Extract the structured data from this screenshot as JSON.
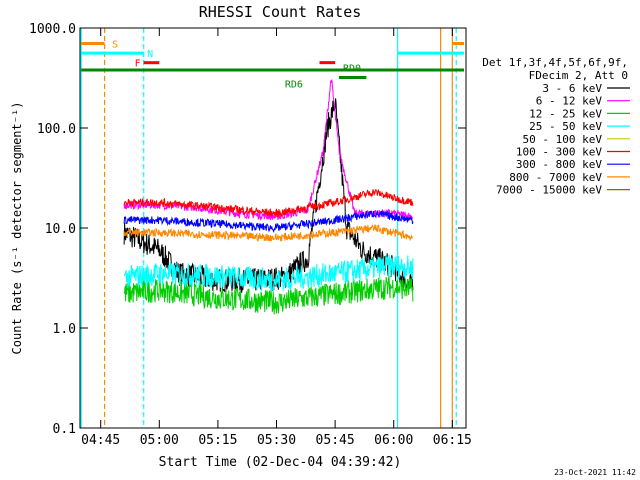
{
  "chart_data": {
    "type": "line",
    "title": "RHESSI Count Rates",
    "xlabel": "Start Time (02-Dec-04 04:39:42)",
    "ylabel": "Count Rate (s⁻¹ detector segment⁻¹)",
    "x_range": [
      "04:39:42",
      "06:18:30"
    ],
    "y_range": [
      0.1,
      1000
    ],
    "y_scale": "log",
    "x_ticks": [
      "04:45",
      "05:00",
      "05:15",
      "05:30",
      "05:45",
      "06:00",
      "06:15"
    ],
    "y_ticks": [
      "0.1",
      "1.0",
      "10.0",
      "100.0",
      "1000.0"
    ],
    "legend_header": [
      "Det 1f,3f,4f,5f,6f,9f,",
      "FDecim 2, Att 0"
    ],
    "legend_position": "right",
    "series": [
      {
        "name": "3 - 6 keV",
        "color": "#000000",
        "x": [
          "04:51",
          "05:00",
          "05:05",
          "05:15",
          "05:25",
          "05:32",
          "05:38",
          "05:43",
          "05:45",
          "05:48",
          "05:52",
          "06:00",
          "06:05"
        ],
        "values": [
          9,
          6,
          3.5,
          3,
          3,
          3.2,
          5,
          100,
          180,
          10,
          6,
          4,
          2.5
        ]
      },
      {
        "name": "6 - 12 keV",
        "color": "#ff00ff",
        "x": [
          "04:51",
          "05:00",
          "05:10",
          "05:20",
          "05:30",
          "05:38",
          "05:42",
          "05:44",
          "05:46",
          "05:50",
          "06:00",
          "06:05"
        ],
        "values": [
          17,
          17,
          16,
          14,
          13,
          15,
          60,
          320,
          60,
          14,
          14,
          13
        ]
      },
      {
        "name": "12 - 25 keV",
        "color": "#00cc00",
        "x": [
          "04:51",
          "05:00",
          "05:15",
          "05:30",
          "05:45",
          "06:00",
          "06:05"
        ],
        "values": [
          2.2,
          2.4,
          2,
          1.8,
          2.2,
          2.6,
          2.4
        ]
      },
      {
        "name": "25 - 50 keV",
        "color": "#00ffff",
        "x": [
          "04:51",
          "05:00",
          "05:15",
          "05:30",
          "05:45",
          "06:00",
          "06:05"
        ],
        "values": [
          3.2,
          3.5,
          3.3,
          3,
          3.5,
          4.2,
          4
        ]
      },
      {
        "name": "50 - 100 keV",
        "color": "#cccc00",
        "x": [
          "04:51",
          "06:05"
        ],
        "values": [
          0.1,
          0.1
        ]
      },
      {
        "name": "100 - 300 keV",
        "color": "#ff0000",
        "x": [
          "04:51",
          "05:00",
          "05:15",
          "05:30",
          "05:45",
          "05:55",
          "06:00",
          "06:05"
        ],
        "values": [
          18,
          18,
          16,
          14,
          18,
          23,
          20,
          18
        ]
      },
      {
        "name": "300 - 800 keV",
        "color": "#0000ff",
        "x": [
          "04:51",
          "05:00",
          "05:15",
          "05:30",
          "05:45",
          "05:55",
          "06:05"
        ],
        "values": [
          12,
          12,
          11,
          10,
          12,
          14,
          12
        ]
      },
      {
        "name": "800 - 7000 keV",
        "color": "#ff8800",
        "x": [
          "04:51",
          "05:00",
          "05:15",
          "05:30",
          "05:45",
          "05:55",
          "06:05"
        ],
        "values": [
          9,
          9,
          8.5,
          8,
          9,
          10,
          8
        ]
      },
      {
        "name": "7000 - 15000 keV",
        "color": "#996600",
        "x": [
          "04:51",
          "06:05"
        ],
        "values": [
          0.1,
          0.1
        ]
      }
    ],
    "vertical_lines": [
      {
        "time": "04:40",
        "color": "#00ffff",
        "style": "solid"
      },
      {
        "time": "04:46",
        "color": "#ff8800",
        "style": "dashed"
      },
      {
        "time": "04:56",
        "color": "#00ffff",
        "style": "dashed"
      },
      {
        "time": "06:01",
        "color": "#00ffff",
        "style": "solid"
      },
      {
        "time": "06:12",
        "color": "#ff8800",
        "style": "solid"
      },
      {
        "time": "06:15",
        "color": "#ff8800",
        "style": "solid"
      },
      {
        "time": "06:16",
        "color": "#00ffff",
        "style": "dashed"
      }
    ],
    "flag_bars": [
      {
        "label": "S",
        "color": "#ff8800",
        "start": "04:40",
        "end": "04:46",
        "level": 700
      },
      {
        "label": "N",
        "color": "#00ffff",
        "start": "04:40",
        "end": "04:56",
        "level": 560
      },
      {
        "label": "",
        "color": "#00ffff",
        "start": "06:01",
        "end": "06:18",
        "level": 560
      },
      {
        "label": "",
        "color": "#ff8800",
        "start": "06:15",
        "end": "06:18",
        "level": 700
      },
      {
        "label": "F",
        "color": "#ff0000",
        "start": "04:56",
        "end": "05:00",
        "level": 450
      },
      {
        "label": "",
        "color": "#ff0000",
        "start": "05:41",
        "end": "05:45",
        "level": 450
      },
      {
        "label": "",
        "color": "#008800",
        "start": "04:40",
        "end": "06:18",
        "level": 380
      },
      {
        "label": "RD0",
        "color": "#008800",
        "start": "05:46",
        "end": "05:53",
        "level": 320
      },
      {
        "label": "RD6",
        "color": "#008800",
        "start": "05:36",
        "end": "05:36",
        "level": 320
      }
    ],
    "footer_timestamp": "23-Oct-2021 11:42"
  }
}
